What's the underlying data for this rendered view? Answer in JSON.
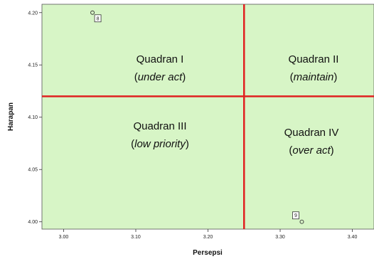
{
  "chart_data": {
    "type": "scatter",
    "title": "",
    "xlabel": "Persepsi",
    "ylabel": "Harapan",
    "xlim": [
      2.97,
      3.43
    ],
    "ylim": [
      3.993,
      4.208
    ],
    "x_ticks": [
      "3.00",
      "3.10",
      "3.20",
      "3.30",
      "3.40"
    ],
    "y_ticks": [
      "4.20",
      "4.15",
      "4.10",
      "4.05",
      "4.00"
    ],
    "x_tick_values": [
      3.0,
      3.1,
      3.2,
      3.3,
      3.4
    ],
    "y_tick_values": [
      4.2,
      4.15,
      4.1,
      4.05,
      4.0
    ],
    "reference_lines": {
      "x": 3.25,
      "y": 4.12
    },
    "background_color": "#d7f5c6",
    "reference_line_color": "#e02020",
    "grid": false,
    "points": [
      {
        "label": "8",
        "x": 3.04,
        "y": 4.2
      },
      {
        "label": "9",
        "x": 3.33,
        "y": 4.0
      }
    ],
    "quadrants": [
      {
        "name": "Quadran I",
        "paren_open": "(",
        "desc": "under act",
        "paren_close": ")"
      },
      {
        "name": "Quadran II",
        "paren_open": "(",
        "desc": "maintain",
        "paren_close": ")"
      },
      {
        "name": "Quadran III",
        "paren_open": "(",
        "desc": "low priority",
        "paren_close": ")"
      },
      {
        "name": "Quadran IV",
        "paren_open": "(",
        "desc": "over act",
        "paren_close": ")"
      }
    ]
  }
}
